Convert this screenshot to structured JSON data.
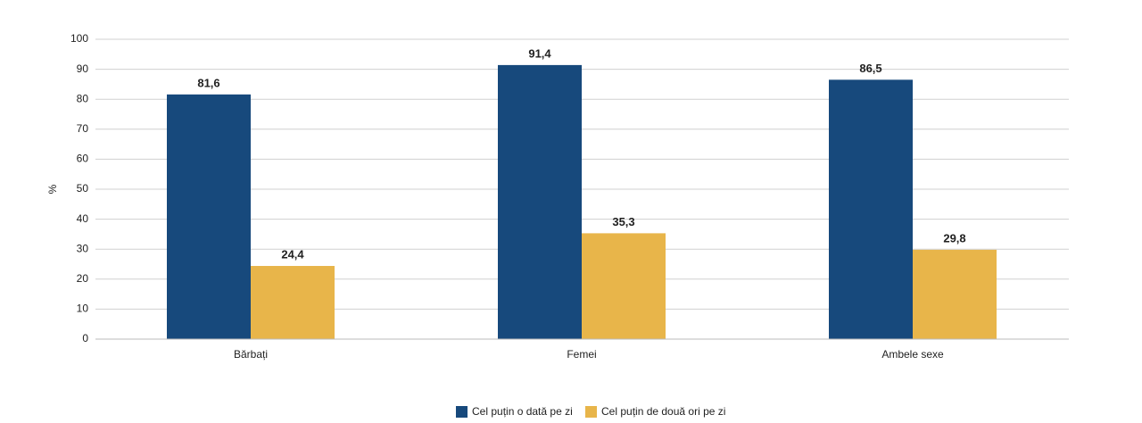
{
  "chart_data": {
    "type": "bar",
    "y_label": "%",
    "categories": [
      "Bărbați",
      "Femei",
      "Ambele sexe"
    ],
    "series": [
      {
        "name": "Cel puțin o dată pe zi",
        "color": "#17497c",
        "values": [
          81.6,
          91.4,
          86.5
        ],
        "value_labels": [
          "81,6",
          "91,4",
          "86,5"
        ]
      },
      {
        "name": "Cel puțin de două ori pe zi",
        "color": "#e8b54a",
        "values": [
          24.4,
          35.3,
          29.8
        ],
        "value_labels": [
          "24,4",
          "35,3",
          "29,8"
        ]
      }
    ],
    "ylim": [
      0,
      100
    ],
    "yticks": [
      0,
      10,
      20,
      30,
      40,
      50,
      60,
      70,
      80,
      90,
      100
    ],
    "grid": true,
    "legend": "bottom"
  }
}
